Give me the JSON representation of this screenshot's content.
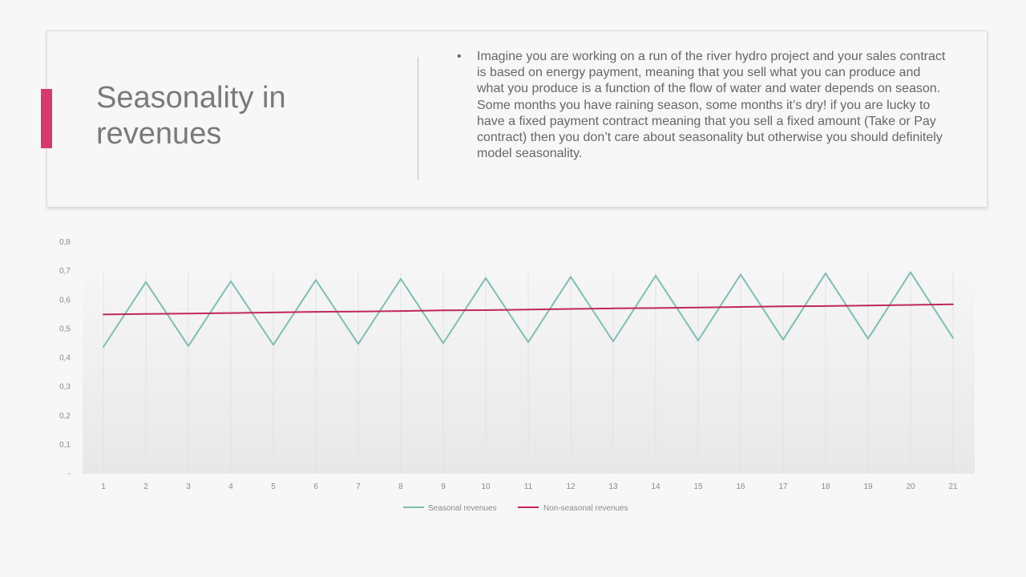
{
  "slide": {
    "title": "Seasonality in revenues",
    "bullet_symbol": "•",
    "bullet_text": "Imagine you are working on a run of the river hydro project and your sales contract is based on energy payment, meaning that you sell what you can produce and what you produce is a function of the flow of water and water depends on season. Some months you have raining season, some months it’s dry! if you are lucky to have a fixed payment contract meaning that you sell a fixed amount (Take or Pay contract) then you don’t care about seasonality but otherwise you should definitely model seasonality.",
    "accent_color": "#d63a6a"
  },
  "chart_data": {
    "type": "line",
    "title": "",
    "xlabel": "",
    "ylabel": "",
    "x": [
      1,
      2,
      3,
      4,
      5,
      6,
      7,
      8,
      9,
      10,
      11,
      12,
      13,
      14,
      15,
      16,
      17,
      18,
      19,
      20,
      21
    ],
    "ylim": [
      0,
      0.8
    ],
    "yticks": [
      "-",
      "0,1",
      "0,2",
      "0,3",
      "0,4",
      "0,5",
      "0,6",
      "0,7",
      "0,8"
    ],
    "grid": "vertical",
    "legend_position": "bottom",
    "series": [
      {
        "name": "Seasonal revenues",
        "color": "#7fbfae",
        "values": [
          0.435,
          0.659,
          0.438,
          0.662,
          0.442,
          0.666,
          0.445,
          0.67,
          0.448,
          0.673,
          0.451,
          0.677,
          0.454,
          0.681,
          0.457,
          0.685,
          0.46,
          0.689,
          0.463,
          0.693,
          0.466
        ]
      },
      {
        "name": "Non-seasonal revenues",
        "color": "#c0285a",
        "values": [
          0.547,
          0.549,
          0.55,
          0.552,
          0.554,
          0.556,
          0.557,
          0.559,
          0.561,
          0.562,
          0.564,
          0.566,
          0.568,
          0.569,
          0.571,
          0.573,
          0.575,
          0.576,
          0.578,
          0.58,
          0.582
        ]
      }
    ]
  }
}
